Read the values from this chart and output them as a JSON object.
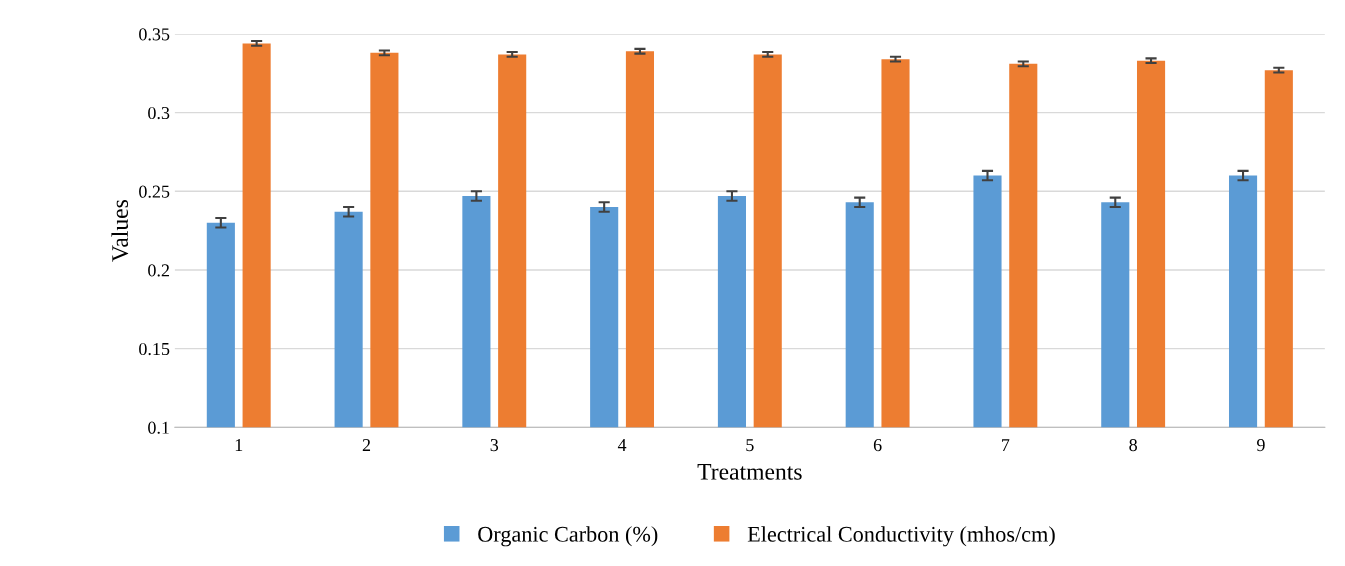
{
  "chart_data": {
    "type": "bar",
    "xlabel": "Treatments",
    "ylabel": "Values",
    "categories": [
      "1",
      "2",
      "3",
      "4",
      "5",
      "6",
      "7",
      "8",
      "9"
    ],
    "series": [
      {
        "name": "Organic Carbon (%)",
        "color": "#5b9bd5",
        "values": [
          0.23,
          0.237,
          0.247,
          0.24,
          0.247,
          0.243,
          0.26,
          0.243,
          0.26
        ],
        "errors": [
          0.003,
          0.003,
          0.003,
          0.003,
          0.003,
          0.003,
          0.003,
          0.003,
          0.003
        ]
      },
      {
        "name": "Electrical Conductivity (mhos/cm)",
        "color": "#ed7d31",
        "values": [
          0.344,
          0.338,
          0.337,
          0.339,
          0.337,
          0.334,
          0.331,
          0.333,
          0.327
        ],
        "errors": [
          0.0015,
          0.0015,
          0.0015,
          0.0015,
          0.0015,
          0.0015,
          0.0015,
          0.0015,
          0.0015
        ]
      }
    ],
    "ylim": [
      0.1,
      0.35
    ],
    "yticks": [
      0.1,
      0.15,
      0.2,
      0.25,
      0.3,
      0.35
    ],
    "grid": "y",
    "legend": "bottom"
  }
}
